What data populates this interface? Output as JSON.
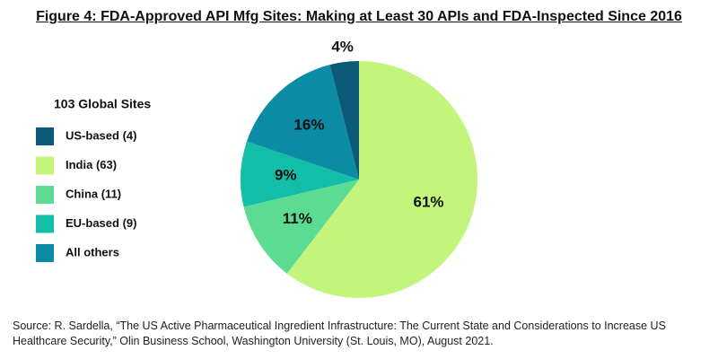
{
  "chart_data": {
    "type": "pie",
    "title": "Figure 4: FDA-Approved API Mfg Sites: Making at Least 30 APIs and FDA-Inspected Since 2016",
    "legend_title": "103 Global Sites",
    "categories": [
      "US-based (4)",
      "India (63)",
      "China (11)",
      "EU-based (9)",
      "All others"
    ],
    "values": [
      4,
      61,
      11,
      9,
      16
    ],
    "value_labels": [
      "4%",
      "61%",
      "11%",
      "9%",
      "16%"
    ],
    "colors": [
      "#0b5a78",
      "#c3f47c",
      "#5cdc93",
      "#12bea8",
      "#0c8ba4"
    ],
    "legend": "left",
    "source": "Source: R. Sardella, “The US Active Pharmaceutical Ingredient Infrastructure: The Current State and Considerations to Increase US Healthcare Security,” Olin Business School, Washington University (St. Louis, MO), August 2021."
  }
}
